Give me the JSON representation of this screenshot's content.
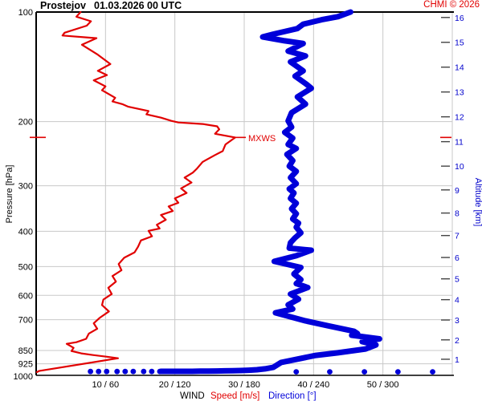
{
  "header": {
    "station": "Prostejov",
    "datetime": "01.03.2026 00 UTC",
    "copyright": "CHMI © 2026"
  },
  "chart_data": {
    "type": "line",
    "title": "Prostejov 01.03.2026 00 UTC vertical wind profile",
    "x_axis": {
      "label_wind": "WIND",
      "label_speed": "Speed [m/s]",
      "label_direction": "Direction [°]",
      "speed_range": [
        0,
        60
      ],
      "direction_range": [
        0,
        360
      ],
      "ticks": [
        {
          "speed": 10,
          "label": "10 / 60"
        },
        {
          "speed": 20,
          "label": "20 / 120"
        },
        {
          "speed": 30,
          "label": "30 / 180"
        },
        {
          "speed": 40,
          "label": "40 / 240"
        },
        {
          "speed": 50,
          "label": "50 / 300"
        }
      ]
    },
    "y_axis_left": {
      "label": "Pressure [hPa]",
      "scale": "log",
      "range": [
        100,
        1000
      ],
      "ticks": [
        100,
        200,
        300,
        400,
        500,
        600,
        700,
        850,
        925,
        1000
      ]
    },
    "y_axis_right": {
      "label": "Altitude [km]",
      "ticks": [
        {
          "km": 1,
          "hpa": 898.7
        },
        {
          "km": 2,
          "hpa": 795.0
        },
        {
          "km": 3,
          "hpa": 701.2
        },
        {
          "km": 4,
          "hpa": 616.6
        },
        {
          "km": 5,
          "hpa": 540.5
        },
        {
          "km": 6,
          "hpa": 472.2
        },
        {
          "km": 7,
          "hpa": 411.0
        },
        {
          "km": 8,
          "hpa": 356.5
        },
        {
          "km": 9,
          "hpa": 308.0
        },
        {
          "km": 10,
          "hpa": 265.0
        },
        {
          "km": 11,
          "hpa": 227.0
        },
        {
          "km": 12,
          "hpa": 194.0
        },
        {
          "km": 13,
          "hpa": 165.8
        },
        {
          "km": 14,
          "hpa": 141.7
        },
        {
          "km": 15,
          "hpa": 121.1
        },
        {
          "km": 16,
          "hpa": 103.5
        }
      ]
    },
    "annotations": {
      "mxws_label": "MXWS",
      "mxws_pressure_hpa": 221,
      "mxws_speed_ms": 28.7
    },
    "colors": {
      "speed": "#e10000",
      "direction": "#0000d9",
      "grid": "#c8c8c8",
      "axis": "#000000",
      "altitude_text": "#0000cc"
    },
    "series": [
      {
        "name": "wind_speed",
        "unit": "m/s",
        "color": "#e10000",
        "points_p_v": [
          [
            100,
            6.4
          ],
          [
            103,
            5.8
          ],
          [
            106,
            7.9
          ],
          [
            109,
            7.3
          ],
          [
            114,
            4.1
          ],
          [
            116,
            3.8
          ],
          [
            118,
            8.7
          ],
          [
            123,
            6.6
          ],
          [
            131,
            8.9
          ],
          [
            139,
            10.7
          ],
          [
            145,
            8.9
          ],
          [
            149,
            10.2
          ],
          [
            154,
            8.3
          ],
          [
            160,
            10.0
          ],
          [
            164,
            9.5
          ],
          [
            172,
            11.4
          ],
          [
            176,
            11.0
          ],
          [
            179,
            12.4
          ],
          [
            182,
            13.3
          ],
          [
            187,
            16.2
          ],
          [
            191,
            15.9
          ],
          [
            195,
            18.0
          ],
          [
            199,
            19.5
          ],
          [
            201,
            20.5
          ],
          [
            203,
            24.0
          ],
          [
            206,
            26.1
          ],
          [
            210,
            26.4
          ],
          [
            216,
            25.8
          ],
          [
            221,
            28.7
          ],
          [
            231,
            27.3
          ],
          [
            241,
            26.9
          ],
          [
            247,
            25.8
          ],
          [
            258,
            24.0
          ],
          [
            269,
            23.2
          ],
          [
            276,
            22.6
          ],
          [
            285,
            21.4
          ],
          [
            294,
            22.4
          ],
          [
            305,
            20.9
          ],
          [
            314,
            21.7
          ],
          [
            325,
            20.0
          ],
          [
            334,
            20.5
          ],
          [
            342,
            19.1
          ],
          [
            352,
            19.7
          ],
          [
            361,
            18.0
          ],
          [
            372,
            18.7
          ],
          [
            384,
            17.4
          ],
          [
            393,
            17.8
          ],
          [
            399,
            16.2
          ],
          [
            413,
            16.7
          ],
          [
            424,
            15.1
          ],
          [
            441,
            14.7
          ],
          [
            457,
            14.2
          ],
          [
            473,
            12.7
          ],
          [
            492,
            11.9
          ],
          [
            512,
            12.3
          ],
          [
            531,
            11.0
          ],
          [
            550,
            11.5
          ],
          [
            572,
            10.4
          ],
          [
            595,
            10.9
          ],
          [
            616,
            9.7
          ],
          [
            638,
            9.5
          ],
          [
            664,
            10.5
          ],
          [
            691,
            9.2
          ],
          [
            716,
            8.3
          ],
          [
            741,
            8.8
          ],
          [
            764,
            7.6
          ],
          [
            790,
            7.2
          ],
          [
            807,
            5.8
          ],
          [
            815,
            4.4
          ],
          [
            836,
            5.4
          ],
          [
            853,
            5.1
          ],
          [
            866,
            6.5
          ],
          [
            875,
            8.2
          ],
          [
            884,
            10.1
          ],
          [
            893,
            11.8
          ],
          [
            968,
            0.4
          ],
          [
            975,
            0.1
          ]
        ]
      },
      {
        "name": "wind_direction",
        "unit": "deg",
        "color": "#0000d9",
        "points_p_v": [
          [
            100,
            272
          ],
          [
            103,
            261
          ],
          [
            105,
            247
          ],
          [
            108,
            231
          ],
          [
            111,
            226
          ],
          [
            115,
            205
          ],
          [
            117,
            196
          ],
          [
            120,
            215
          ],
          [
            122,
            231
          ],
          [
            128,
            218
          ],
          [
            132,
            233
          ],
          [
            137,
            220
          ],
          [
            145,
            231
          ],
          [
            150,
            224
          ],
          [
            158,
            234
          ],
          [
            162,
            238
          ],
          [
            171,
            226
          ],
          [
            179,
            233
          ],
          [
            189,
            221
          ],
          [
            199,
            218
          ],
          [
            207,
            221
          ],
          [
            214,
            215
          ],
          [
            222,
            222
          ],
          [
            231,
            218
          ],
          [
            237,
            225
          ],
          [
            246,
            217
          ],
          [
            256,
            222
          ],
          [
            265,
            219
          ],
          [
            274,
            225
          ],
          [
            285,
            220
          ],
          [
            296,
            225
          ],
          [
            306,
            219
          ],
          [
            314,
            223
          ],
          [
            325,
            220
          ],
          [
            335,
            225
          ],
          [
            347,
            221
          ],
          [
            358,
            225
          ],
          [
            370,
            222
          ],
          [
            380,
            227
          ],
          [
            390,
            225
          ],
          [
            404,
            229
          ],
          [
            417,
            224
          ],
          [
            430,
            220
          ],
          [
            445,
            219
          ],
          [
            451,
            238
          ],
          [
            467,
            225
          ],
          [
            484,
            206
          ],
          [
            503,
            229
          ],
          [
            524,
            223
          ],
          [
            543,
            229
          ],
          [
            557,
            225
          ],
          [
            571,
            235
          ],
          [
            595,
            220
          ],
          [
            615,
            227
          ],
          [
            637,
            218
          ],
          [
            654,
            222
          ],
          [
            670,
            207
          ],
          [
            705,
            233
          ],
          [
            727,
            252
          ],
          [
            753,
            275
          ],
          [
            764,
            278
          ],
          [
            772,
            273
          ],
          [
            790,
            297
          ],
          [
            804,
            282
          ],
          [
            821,
            294
          ],
          [
            842,
            285
          ],
          [
            863,
            261
          ],
          [
            877,
            242
          ],
          [
            917,
            212
          ],
          [
            946,
            205
          ],
          [
            955,
            198
          ],
          [
            960,
            191
          ],
          [
            963,
            184
          ],
          [
            965,
            177
          ],
          [
            966,
            170
          ],
          [
            967,
            163
          ],
          [
            968,
            156
          ],
          [
            969,
            149
          ],
          [
            969,
            142
          ],
          [
            970,
            135
          ],
          [
            970,
            128
          ],
          [
            970,
            121
          ],
          [
            970,
            114
          ],
          [
            970,
            108
          ]
        ]
      },
      {
        "name": "wind_direction_surface_dots_left",
        "unit": "deg",
        "color": "#0000d9",
        "pressure_hpa": 971,
        "directions": [
          47,
          54,
          61,
          70,
          77,
          84,
          93,
          100,
          107
        ]
      },
      {
        "name": "wind_direction_surface_dots_right",
        "unit": "deg",
        "color": "#0000d9",
        "pressure_hpa": 973,
        "directions": [
          225,
          254,
          284,
          313,
          343
        ]
      }
    ]
  }
}
